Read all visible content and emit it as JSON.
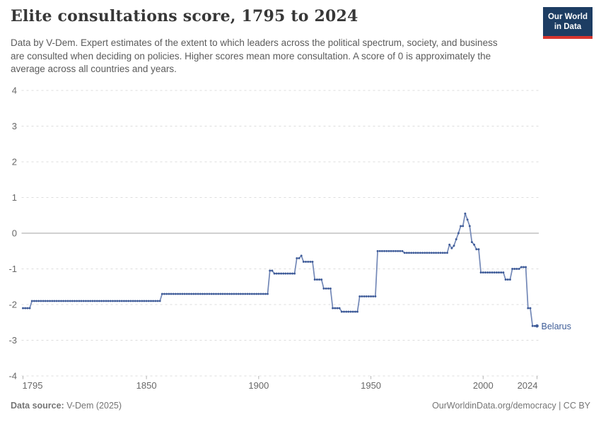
{
  "header": {
    "title": "Elite consultations score, 1795 to 2024",
    "subtitle": "Data by V-Dem. Expert estimates of the extent to which leaders across the political spectrum, society, and business are consulted when deciding on policies. Higher scores mean more consultation. A score of 0 is approximately the average across all countries and years.",
    "logo": {
      "line1": "Our World",
      "line2": "in Data"
    }
  },
  "chart_data": {
    "type": "line",
    "title": "Elite consultations score, 1795 to 2024",
    "xlabel": "",
    "ylabel": "",
    "x_range": [
      1795,
      2024
    ],
    "y_range": [
      -4,
      4
    ],
    "x_ticks": [
      1795,
      1850,
      1900,
      1950,
      2000,
      2024
    ],
    "y_ticks": [
      4,
      3,
      2,
      1,
      0,
      -1,
      -2,
      -3,
      -4
    ],
    "grid": "horizontal dashed gridlines, solid line at 0",
    "legend": "entity label at end of line",
    "series": [
      {
        "name": "Belarus",
        "step_points": [
          [
            1795,
            -2.1
          ],
          [
            1799,
            -1.9
          ],
          [
            1857,
            -1.7
          ],
          [
            1905,
            -1.05
          ],
          [
            1907,
            -1.13
          ],
          [
            1917,
            -0.7
          ],
          [
            1919,
            -0.63
          ],
          [
            1920,
            -0.8
          ],
          [
            1925,
            -1.3
          ],
          [
            1929,
            -1.55
          ],
          [
            1933,
            -2.1
          ],
          [
            1937,
            -2.2
          ],
          [
            1945,
            -1.77
          ],
          [
            1953,
            -0.5
          ],
          [
            1965,
            -0.55
          ],
          [
            1985,
            -0.32
          ],
          [
            1986,
            -0.42
          ],
          [
            1987,
            -0.35
          ],
          [
            1988,
            -0.17
          ],
          [
            1989,
            0.0
          ],
          [
            1990,
            0.2
          ],
          [
            1992,
            0.55
          ],
          [
            1993,
            0.38
          ],
          [
            1994,
            0.2
          ],
          [
            1995,
            -0.25
          ],
          [
            1996,
            -0.32
          ],
          [
            1997,
            -0.45
          ],
          [
            1999,
            -1.1
          ],
          [
            2010,
            -1.3
          ],
          [
            2013,
            -1.0
          ],
          [
            2017,
            -0.95
          ],
          [
            2020,
            -2.1
          ],
          [
            2022,
            -2.6
          ]
        ],
        "end_year": 2024,
        "end_label": "Belarus"
      }
    ]
  },
  "colors": {
    "line": "#3e5b98",
    "line_light": "#7388b7",
    "entity_label": "#3d5c97",
    "grid": "#dddddd",
    "zero_line": "#a2a2a2",
    "axis_text": "#686868",
    "tick": "#b5b5b5",
    "logo_bg": "#1d3d63",
    "logo_red": "#d8352e"
  },
  "footer": {
    "source_label": "Data source:",
    "source_value": " V-Dem (2025)",
    "credit": "OurWorldinData.org/democracy | CC BY"
  }
}
